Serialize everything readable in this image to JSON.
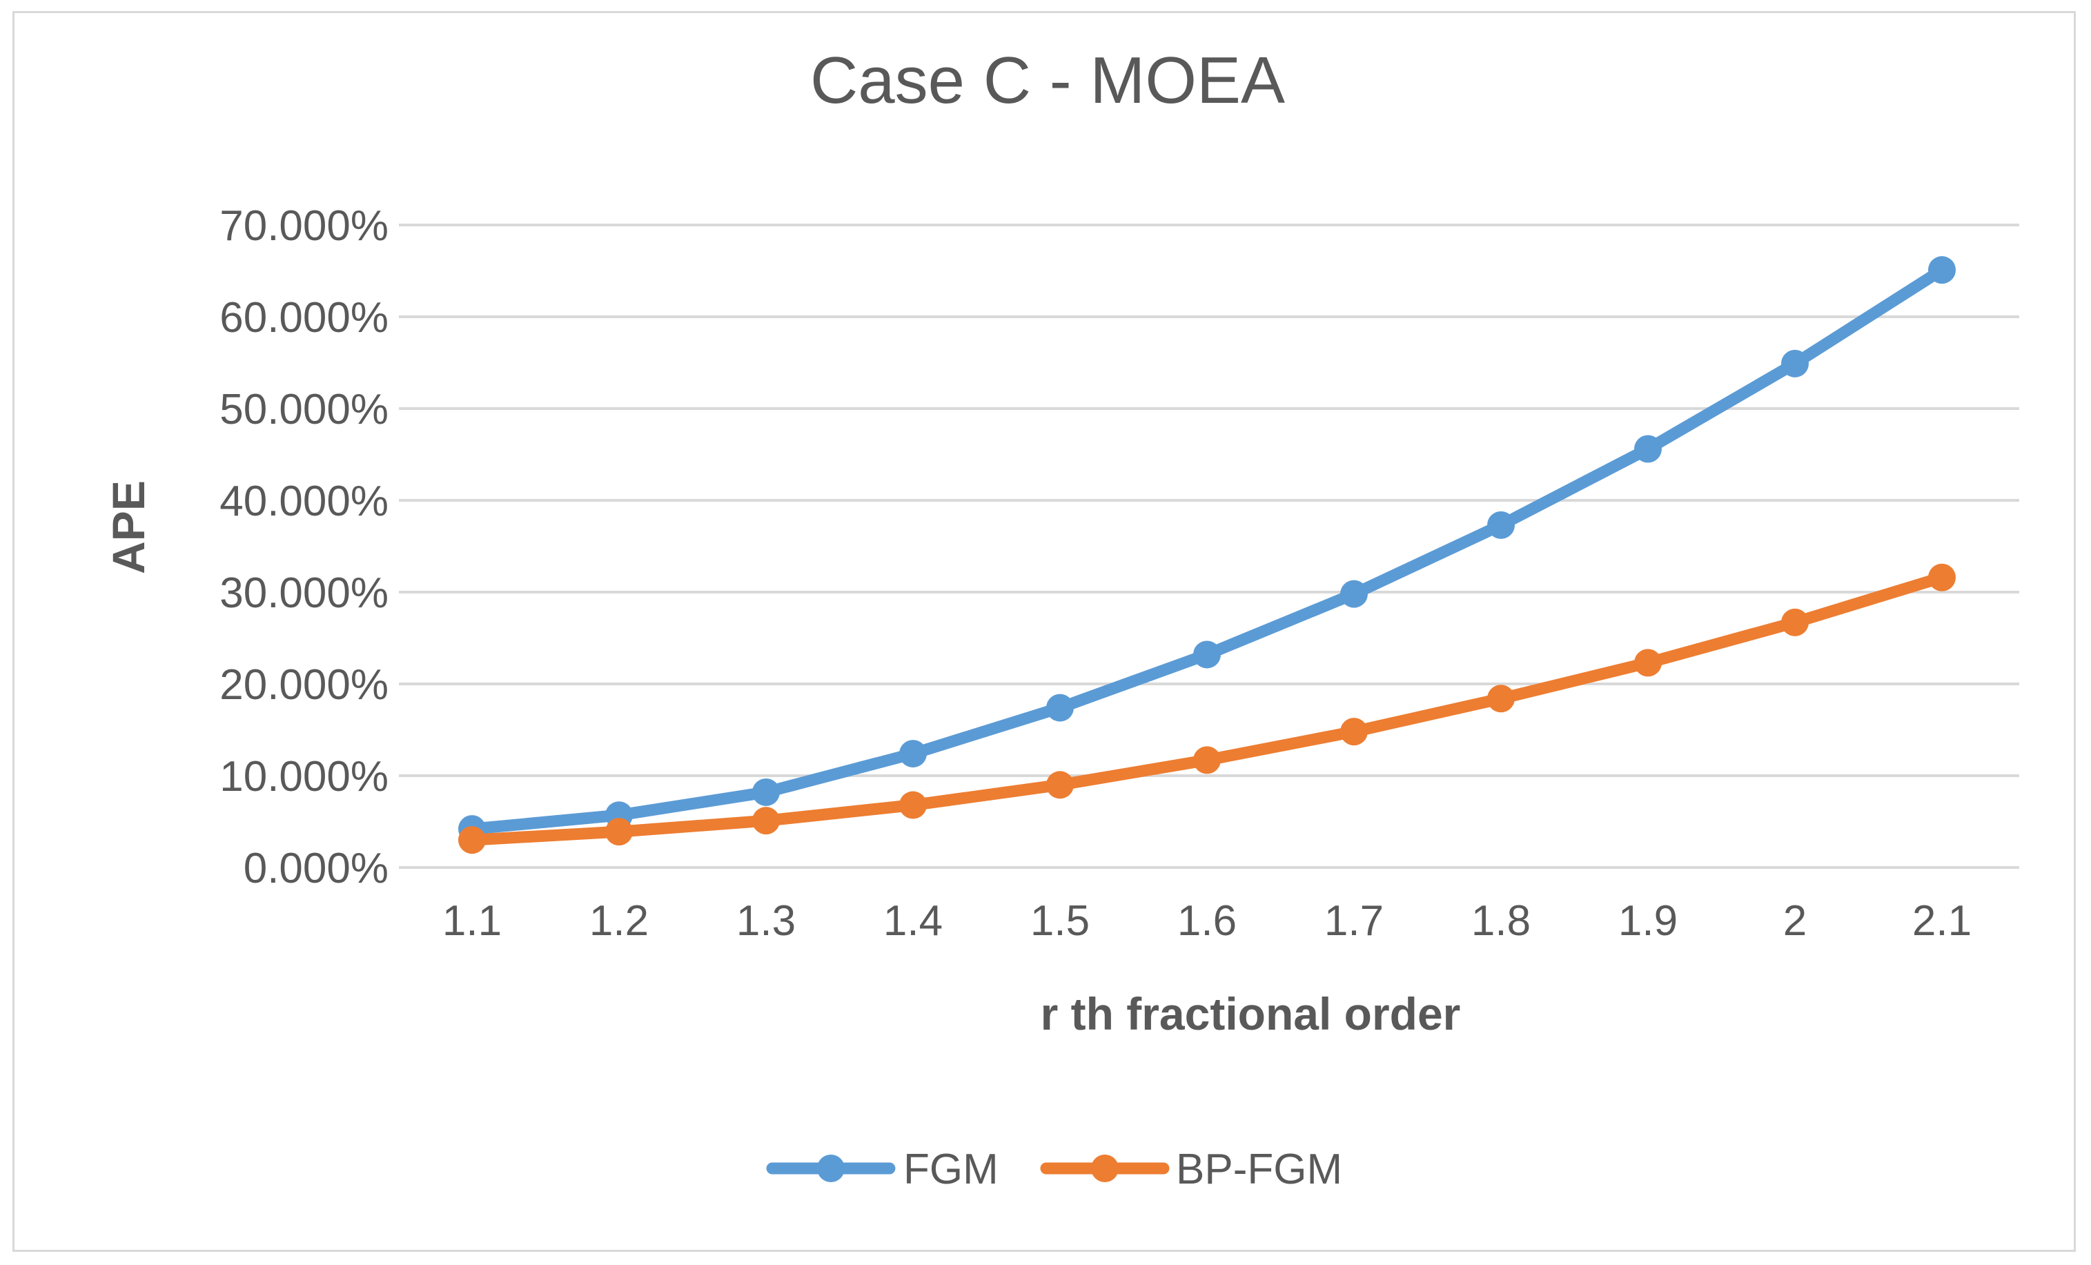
{
  "chart_data": {
    "type": "line",
    "title": "Case C - MOEA",
    "xlabel": "r th  fractional order",
    "ylabel": "APE",
    "categories": [
      "1.1",
      "1.2",
      "1.3",
      "1.4",
      "1.5",
      "1.6",
      "1.7",
      "1.8",
      "1.9",
      "2",
      "2.1"
    ],
    "ylim": [
      0,
      70
    ],
    "yticks": [
      0,
      10,
      20,
      30,
      40,
      50,
      60,
      70
    ],
    "ytick_labels": [
      "0.000%",
      "10.000%",
      "20.000%",
      "30.000%",
      "40.000%",
      "50.000%",
      "60.000%",
      "70.000%"
    ],
    "grid": true,
    "legend_position": "bottom",
    "series": [
      {
        "name": "FGM",
        "color": "#5B9BD5",
        "values": [
          4.2,
          5.7,
          8.2,
          12.4,
          17.4,
          23.2,
          29.8,
          37.3,
          45.6,
          54.9,
          65.1
        ]
      },
      {
        "name": "BP-FGM",
        "color": "#ED7D31",
        "values": [
          3.0,
          3.9,
          5.1,
          6.8,
          9.0,
          11.7,
          14.8,
          18.4,
          22.3,
          26.7,
          31.6
        ]
      }
    ]
  }
}
